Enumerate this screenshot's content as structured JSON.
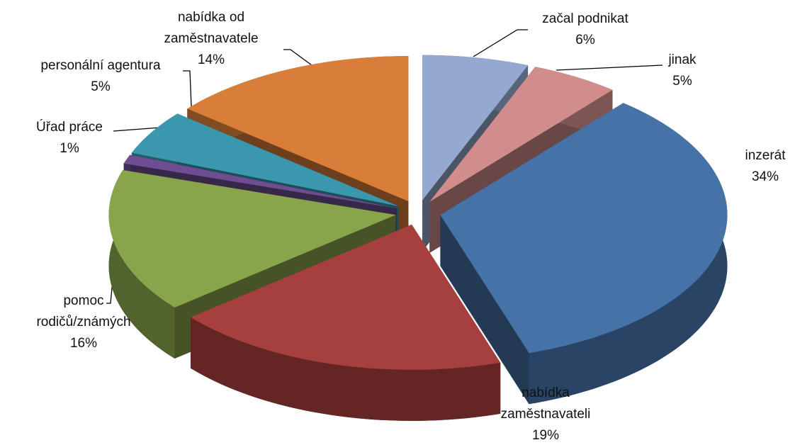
{
  "chart_data": {
    "type": "pie",
    "categories": [
      "začal podnikat",
      "jinak",
      "inzerát",
      "nabídka zaměstnavateli",
      "pomoc rodičů/známých",
      "Úřad práce",
      "personální agentura",
      "nabídka od zaměstnavatele"
    ],
    "values": [
      6,
      5,
      34,
      19,
      16,
      1,
      5,
      14
    ],
    "value_labels": [
      "6%",
      "5%",
      "34%",
      "19%",
      "16%",
      "1%",
      "5%",
      "14%"
    ],
    "colors": [
      "#95a9d0",
      "#d08d8b",
      "#4572a7",
      "#a5403e",
      "#89a54c",
      "#6e4d92",
      "#3b97ae",
      "#d97e38"
    ]
  }
}
